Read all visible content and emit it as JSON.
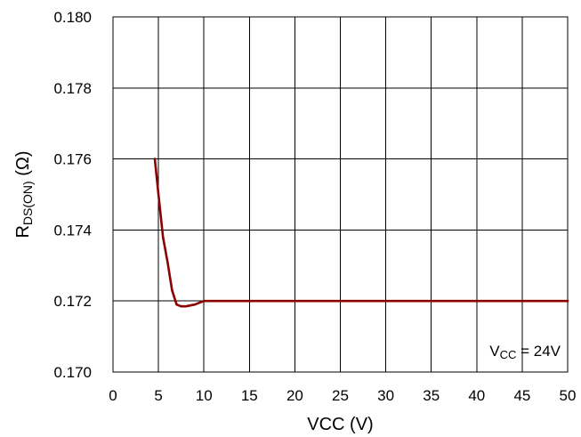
{
  "chart_data": {
    "type": "line",
    "xlabel": "VCC (V)",
    "ylabel": {
      "main": "R",
      "sub": "DS(ON)",
      "unit": " (Ω)"
    },
    "xlim": [
      0,
      50
    ],
    "ylim": [
      0.17,
      0.18
    ],
    "x_ticks": [
      0,
      5,
      10,
      15,
      20,
      25,
      30,
      35,
      40,
      45,
      50
    ],
    "y_ticks": [
      0.17,
      0.172,
      0.174,
      0.176,
      0.178,
      0.18
    ],
    "x_tick_labels": [
      "0",
      "5",
      "10",
      "15",
      "20",
      "25",
      "30",
      "35",
      "40",
      "45",
      "50"
    ],
    "y_tick_labels": [
      "0.170",
      "0.172",
      "0.174",
      "0.176",
      "0.178",
      "0.180"
    ],
    "grid": true,
    "annotation": {
      "main": "V",
      "sub": "CC",
      "rest": " = 24V"
    },
    "series": [
      {
        "color": "#8b0000",
        "x": [
          4.6,
          5.0,
          5.5,
          6.0,
          6.5,
          7.0,
          7.5,
          8.0,
          9.0,
          10.0,
          15,
          20,
          25,
          30,
          35,
          40,
          45,
          50
        ],
        "y": [
          0.176,
          0.175,
          0.1738,
          0.1731,
          0.1723,
          0.1719,
          0.17185,
          0.17185,
          0.1719,
          0.172,
          0.172,
          0.172,
          0.172,
          0.172,
          0.172,
          0.172,
          0.172,
          0.172
        ]
      }
    ]
  }
}
